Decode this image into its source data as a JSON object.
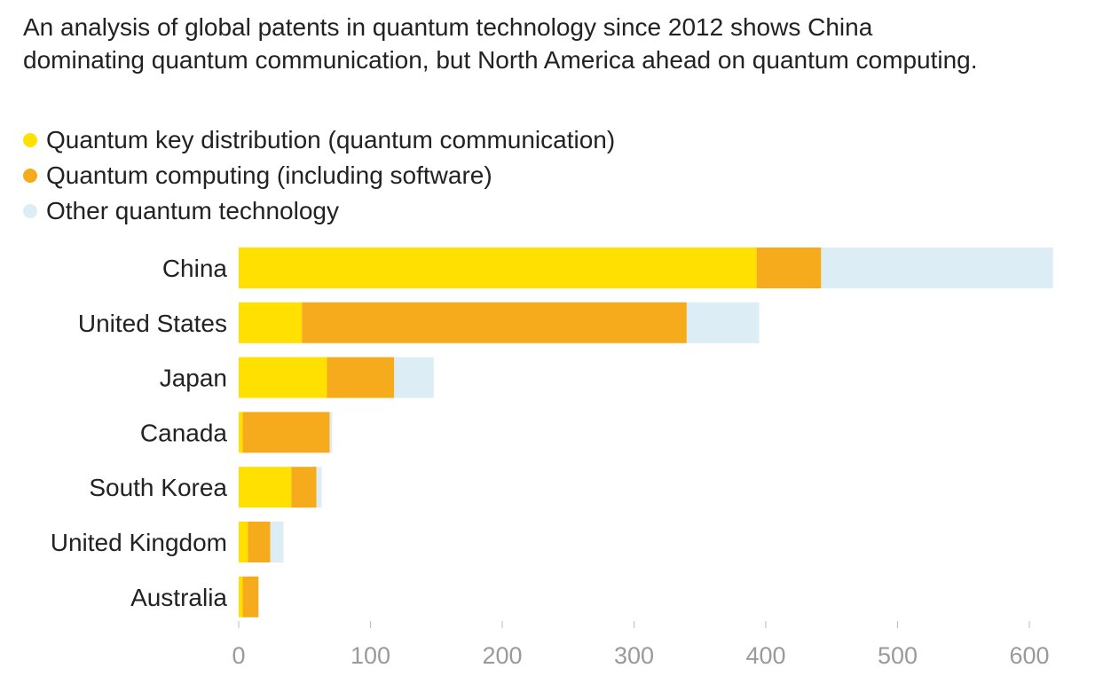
{
  "subtitle": "An analysis of global patents in quantum technology since 2012 shows China dominating quantum communication, but North America ahead on quantum computing.",
  "chart_data": {
    "type": "bar",
    "orientation": "horizontal",
    "stacked": true,
    "categories": [
      "China",
      "United States",
      "Japan",
      "Canada",
      "South Korea",
      "United Kingdom",
      "Australia"
    ],
    "series": [
      {
        "name": "Quantum key distribution (quantum communication)",
        "color": "#FFE000",
        "values": [
          393,
          48,
          67,
          3,
          40,
          7,
          3
        ]
      },
      {
        "name": "Quantum computing (including software)",
        "color": "#F6AB1C",
        "values": [
          49,
          292,
          51,
          66,
          19,
          17,
          12
        ]
      },
      {
        "name": "Other quantum technology",
        "color": "#DCEDF5",
        "values": [
          176,
          55,
          30,
          2,
          4,
          10,
          0
        ]
      }
    ],
    "xlim": [
      0,
      620
    ],
    "xticks": [
      0,
      100,
      200,
      300,
      400,
      500,
      600
    ],
    "tick_labels": [
      "0",
      "100",
      "200",
      "300",
      "400",
      "500",
      "600"
    ],
    "legend_position": "top-left",
    "grid": false
  }
}
